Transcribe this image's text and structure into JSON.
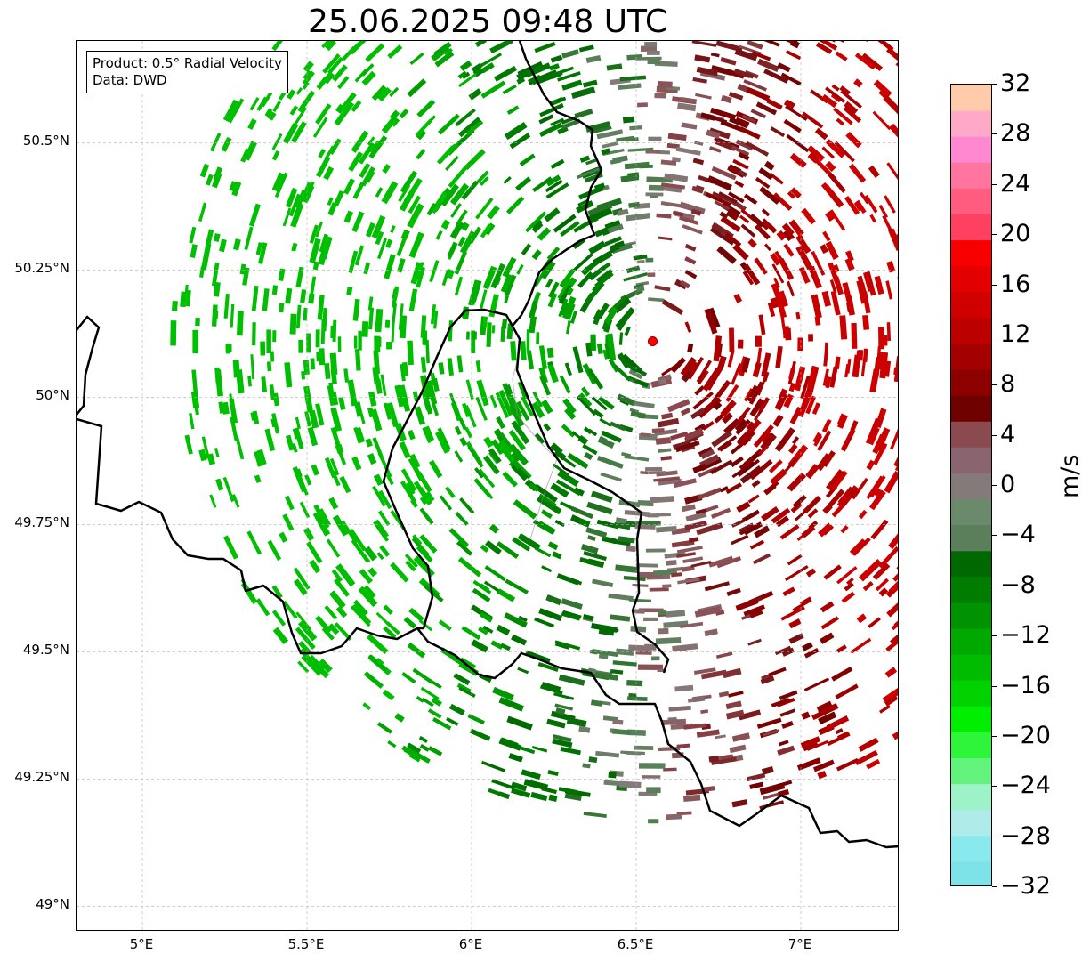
{
  "title": "25.06.2025 09:48 UTC",
  "info": {
    "product": "Product: 0.5° Radial Velocity",
    "source": "Data: DWD"
  },
  "map": {
    "lon_range": [
      4.8,
      7.3
    ],
    "lat_range": [
      48.95,
      50.7
    ],
    "lat_ticks": [
      "50.5°N",
      "50.25°N",
      "50°N",
      "49.75°N",
      "49.5°N",
      "49.25°N",
      "49°N"
    ],
    "lon_ticks": [
      "5°E",
      "5.5°E",
      "6°E",
      "6.5°E",
      "7°E"
    ],
    "gridlines": true,
    "radar_site": {
      "lon": 6.55,
      "lat": 50.11,
      "color": "#ff0000"
    }
  },
  "colorbar": {
    "unit": "m/s",
    "min": -32,
    "max": 32,
    "tick_labels": [
      "32",
      "28",
      "24",
      "20",
      "16",
      "12",
      "8",
      "4",
      "0",
      "−4",
      "−8",
      "−12",
      "−16",
      "−20",
      "−24",
      "−28",
      "−32"
    ],
    "colors": [
      "#7de3e8",
      "#8ae9ec",
      "#aeebe9",
      "#9ef2c8",
      "#63f27c",
      "#2ff53a",
      "#00ee00",
      "#00d200",
      "#00bc00",
      "#00a800",
      "#009200",
      "#007d00",
      "#006800",
      "#5b7f5b",
      "#6b8a6b",
      "#857a7a",
      "#8a6570",
      "#8a4a50",
      "#6e0000",
      "#8c0000",
      "#a40000",
      "#bc0000",
      "#d00000",
      "#e20000",
      "#f80000",
      "#ff4060",
      "#ff5c80",
      "#ff75a0",
      "#ff88d0",
      "#ffa8c8",
      "#ffcbab"
    ]
  }
}
